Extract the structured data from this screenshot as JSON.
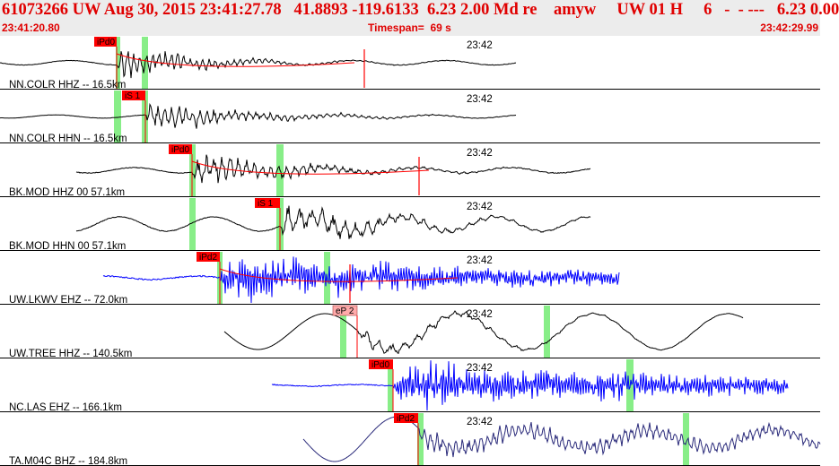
{
  "header": {
    "title": "61073266 UW Aug 30, 2015 23:41:27.78   41.8893 -119.6133  6.23 2.00 Md re    amyw     UW 01 H     6   -  - ---   6.23 0.00",
    "start_time": "23:41:20.80",
    "timespan": "Timespan=  69 s",
    "end_time": "23:42:29.99"
  },
  "colors": {
    "header_text": "#e00000",
    "header_bg": "#ececec",
    "pick": "#ff0000",
    "pick_light": "#ffaaaa",
    "window": "#88ee88"
  },
  "traces": [
    {
      "label": "NN.COLR HHZ -- 16.5km",
      "time_label": "23:42",
      "color": "#000000",
      "pick": "iPd0",
      "pick_style": "red"
    },
    {
      "label": "NN.COLR HHN -- 16.5km",
      "time_label": "23:42",
      "color": "#000000",
      "pick": "iS 1",
      "pick_style": "red"
    },
    {
      "label": "BK.MOD HHZ 00 57.1km",
      "time_label": "23:42",
      "color": "#000000",
      "pick": "iPd0",
      "pick_style": "red"
    },
    {
      "label": "BK.MOD HHN 00 57.1km",
      "time_label": "23:42",
      "color": "#000000",
      "pick": "iS 1",
      "pick_style": "red"
    },
    {
      "label": "UW.LKWV EHZ -- 72.0km",
      "time_label": "23:42",
      "color": "#0000ff",
      "pick": "iPd2",
      "pick_style": "red"
    },
    {
      "label": "UW.TREE HHZ -- 140.5km",
      "time_label": "23:42",
      "color": "#000000",
      "pick": "eP 2",
      "pick_style": "light"
    },
    {
      "label": "NC.LAS EHZ -- 166.1km",
      "time_label": "23:42",
      "color": "#0000ff",
      "pick": "iPd0",
      "pick_style": "red"
    },
    {
      "label": "TA.M04C BHZ -- 184.8km",
      "time_label": "23:42",
      "color": "#2a2a7a",
      "pick": "iPd2",
      "pick_style": "red"
    }
  ]
}
